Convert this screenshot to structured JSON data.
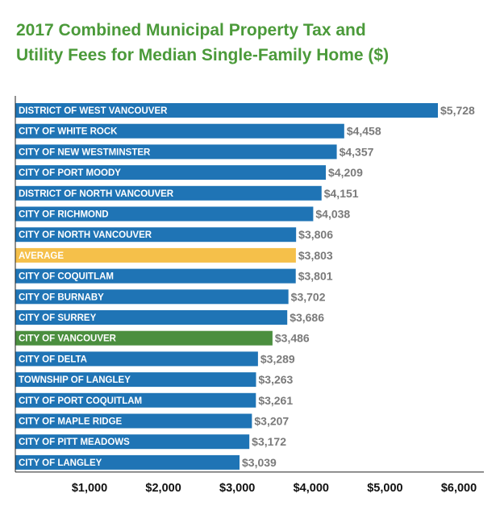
{
  "chart_data": {
    "type": "bar",
    "orientation": "horizontal",
    "title_line1": "2017 Combined Municipal Property Tax and",
    "title_line2": "Utility Fees for Median Single-Family Home ($)",
    "categories": [
      "DISTRICT OF WEST VANCOUVER",
      "CITY OF WHITE ROCK",
      "CITY OF NEW WESTMINSTER",
      "CITY OF PORT MOODY",
      "DISTRICT OF NORTH VANCOUVER",
      "CITY OF RICHMOND",
      "CITY OF NORTH VANCOUVER",
      "AVERAGE",
      "CITY OF COQUITLAM",
      "CITY OF BURNABY",
      "CITY OF SURREY",
      "CITY OF VANCOUVER",
      "CITY OF DELTA",
      "TOWNSHIP OF LANGLEY",
      "CITY OF PORT COQUITLAM",
      "CITY OF MAPLE RIDGE",
      "CITY OF PITT MEADOWS",
      "CITY OF LANGLEY"
    ],
    "values": [
      5728,
      4458,
      4357,
      4209,
      4151,
      4038,
      3806,
      3803,
      3801,
      3702,
      3686,
      3486,
      3289,
      3263,
      3261,
      3207,
      3172,
      3039
    ],
    "value_labels": [
      "$5,728",
      "$4,458",
      "$4,357",
      "$4,209",
      "$4,151",
      "$4,038",
      "$3,806",
      "$3,803",
      "$3,801",
      "$3,702",
      "$3,686",
      "$3,486",
      "$3,289",
      "$3,263",
      "$3,261",
      "$3,207",
      "$3,172",
      "$3,039"
    ],
    "highlight": {
      "AVERAGE": "#f5c04a",
      "CITY OF VANCOUVER": "#4b8f3f"
    },
    "bar_color": "#1f74b5",
    "x_ticks": [
      1000,
      2000,
      3000,
      4000,
      5000,
      6000
    ],
    "x_tick_labels": [
      "$1,000",
      "$2,000",
      "$3,000",
      "$4,000",
      "$5,000",
      "$6,000"
    ],
    "xlim": [
      0,
      6000
    ],
    "grid": false,
    "legend": "none"
  }
}
